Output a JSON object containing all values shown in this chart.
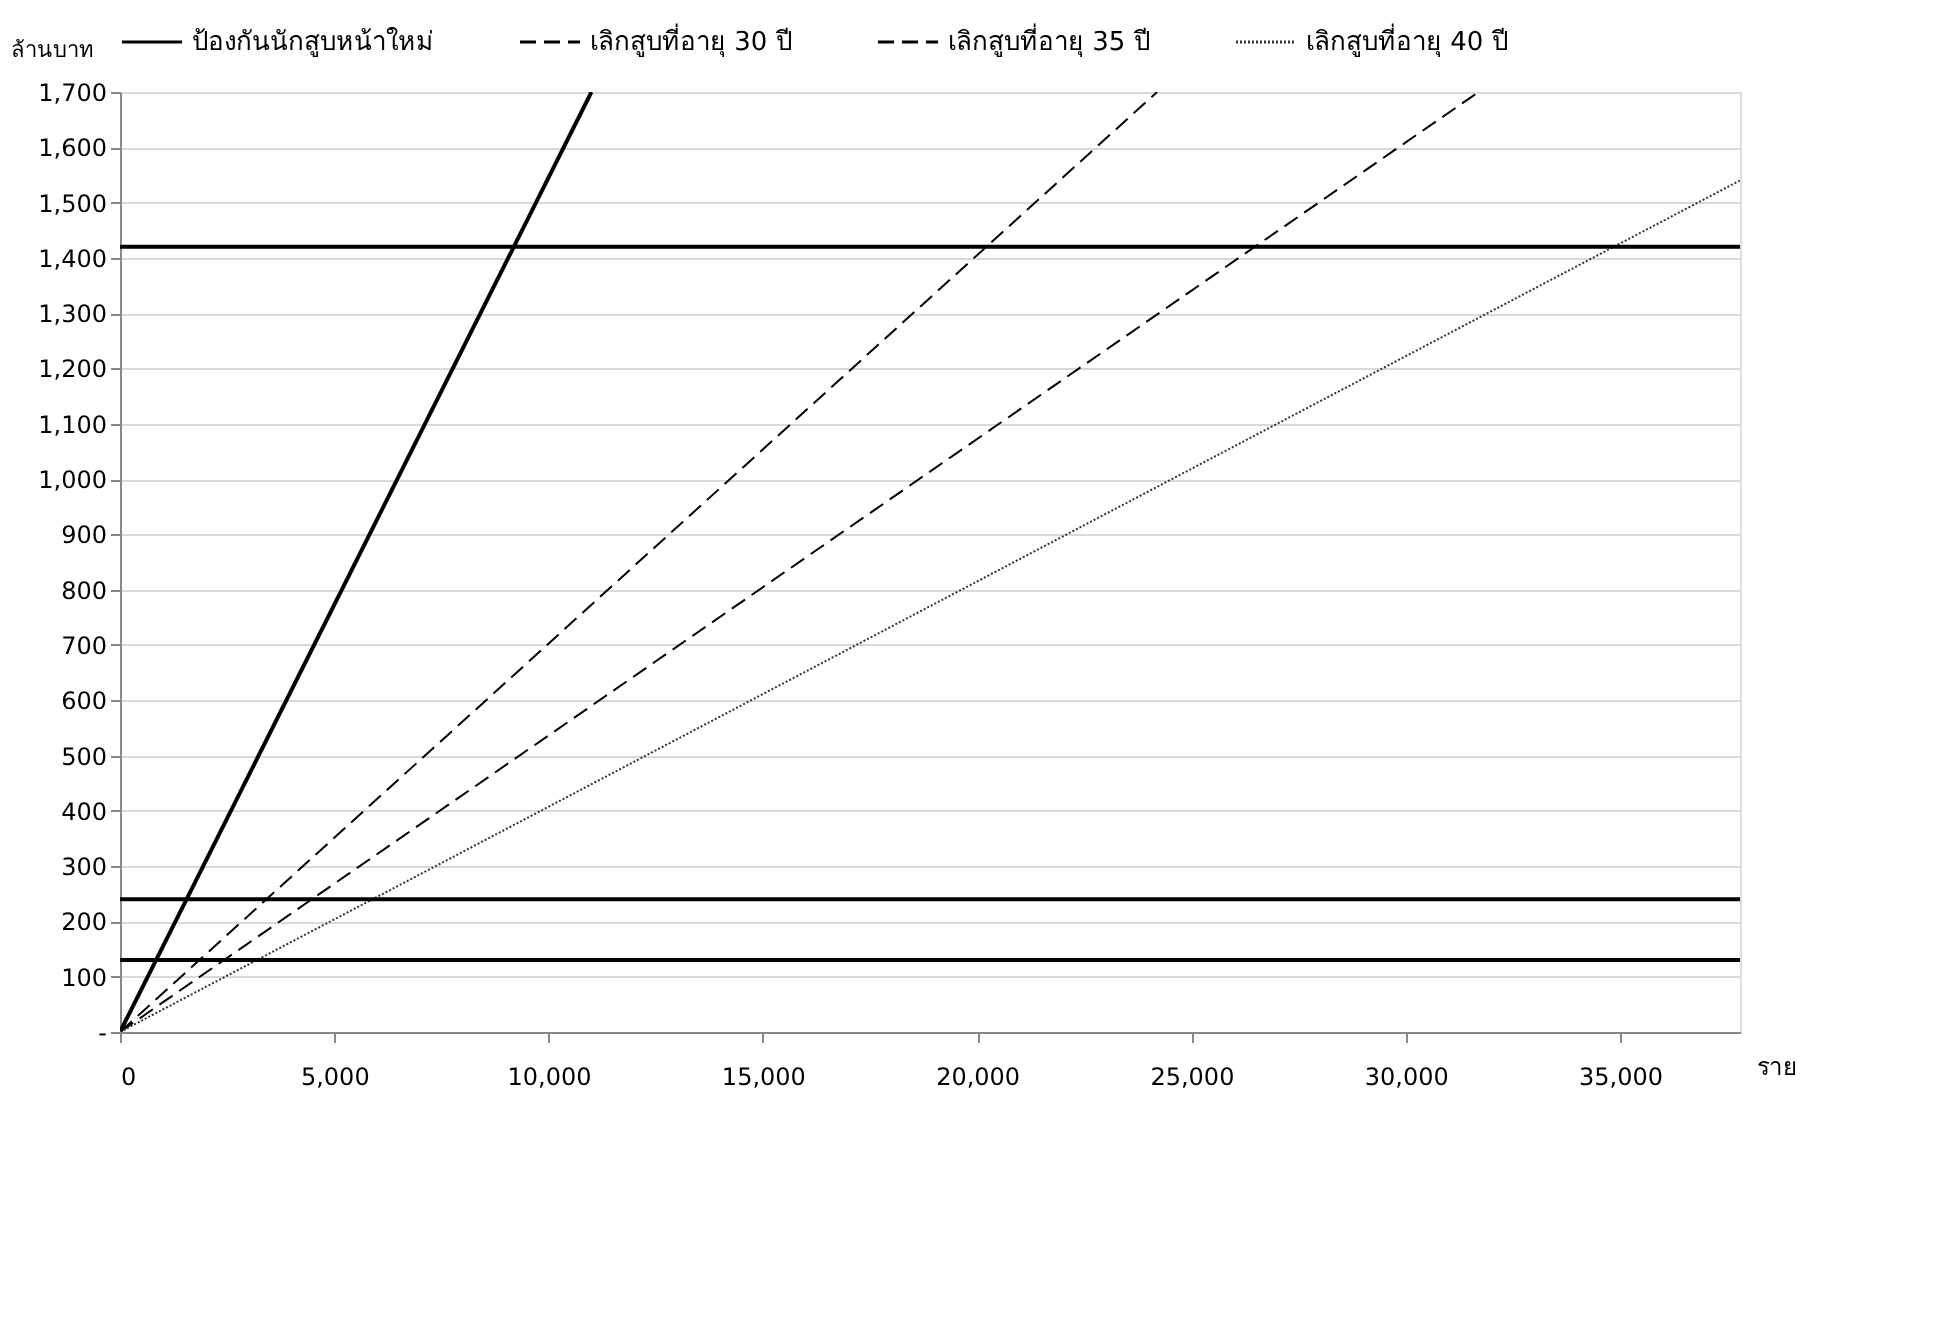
{
  "chart_data": {
    "type": "line",
    "xlabel": "ราย",
    "ylabel": "ล้านบาท",
    "xlim": [
      0,
      37800
    ],
    "xticks": [
      0,
      {
        "value": 5000,
        "label": "5,000"
      },
      {
        "value": 10000,
        "label": "10,000"
      },
      {
        "value": 15000,
        "label": "15,000"
      },
      {
        "value": 20000,
        "label": "20,000"
      },
      {
        "value": 25000,
        "label": "25,000"
      },
      {
        "value": 30000,
        "label": "30,000"
      },
      {
        "value": 35000,
        "label": "35,000"
      }
    ],
    "ylim": [
      0,
      1700
    ],
    "yticks": [
      {
        "value": 0,
        "label": "-"
      },
      100,
      200,
      300,
      400,
      500,
      600,
      700,
      800,
      900,
      {
        "value": 1000,
        "label": "1,000"
      },
      {
        "value": 1100,
        "label": "1,100"
      },
      {
        "value": 1200,
        "label": "1,200"
      },
      {
        "value": 1300,
        "label": "1,300"
      },
      {
        "value": 1400,
        "label": "1,400"
      },
      {
        "value": 1500,
        "label": "1,500"
      },
      {
        "value": 1600,
        "label": "1,600"
      },
      {
        "value": 1700,
        "label": "1,700"
      }
    ],
    "grid": "y",
    "legend": "top",
    "marker": "none",
    "series": [
      {
        "name": "ป้องกันนักสูบหน้าใหม่",
        "color": "#000000",
        "line_style": "solid",
        "x": [
          0,
          11000
        ],
        "values": [
          0,
          1700
        ]
      },
      {
        "name": "เลิกสูบที่อายุ 30 ปี",
        "color": "#000000",
        "line_style": "dashed",
        "x": [
          0,
          24200
        ],
        "values": [
          0,
          1700
        ]
      },
      {
        "name": "เลิกสูบที่อายุ 35 ปี",
        "color": "#000000",
        "line_style": "dashed",
        "x": [
          0,
          31700
        ],
        "values": [
          0,
          1700
        ]
      },
      {
        "name": "เลิกสูบที่อายุ 40 ปี",
        "color": "#333333",
        "line_style": "dotted",
        "x": [
          0,
          37800
        ],
        "values": [
          0,
          1540
        ]
      }
    ],
    "ref_lines": [
      {
        "axis": "y",
        "value": 1420,
        "color": "#000000"
      },
      {
        "axis": "y",
        "value": 240,
        "color": "#000000"
      },
      {
        "axis": "y",
        "value": 130,
        "color": "#000000"
      }
    ]
  }
}
